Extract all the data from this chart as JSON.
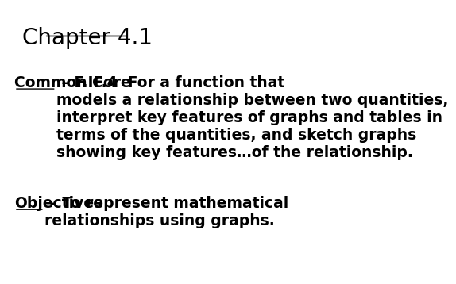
{
  "title": "Chapter 4.1",
  "background_color": "#ffffff",
  "text_color": "#000000",
  "title_fontsize": 20,
  "body_fontsize": 13.5,
  "common_core_label": "Common Core",
  "common_core_rest": " – F.IF.4  For a function that\nmodels a relationship between two quantities,\ninterpret key features of graphs and tables in\nterms of the quantities, and sketch graphs\nshowing key features…of the relationship.",
  "objectives_label": "Objectives",
  "objectives_rest": " – To represent mathematical\nrelationships using graphs."
}
